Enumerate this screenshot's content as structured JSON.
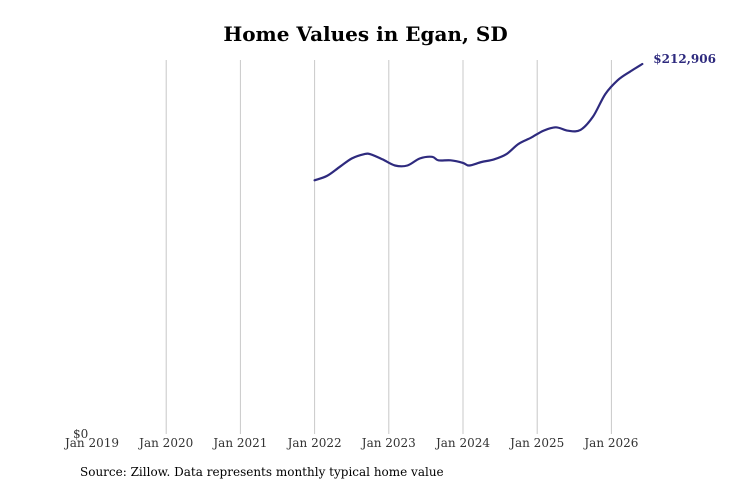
{
  "chart_data": {
    "type": "line",
    "title": "Home Values in Egan, SD",
    "xlabel": "",
    "ylabel": "",
    "y_tick_label": "$0",
    "end_label": "$212,906",
    "line_color": "#2e2a7e",
    "grid_color": "#c8c8c8",
    "grid": "vertical",
    "x_ticks": [
      "Jan 2019",
      "Jan 2020",
      "Jan 2021",
      "Jan 2022",
      "Jan 2023",
      "Jan 2024",
      "Jan 2025",
      "Jan 2026"
    ],
    "xlim": [
      "2019-01",
      "2026-06"
    ],
    "ylim": [
      0,
      212906
    ],
    "series": [
      {
        "points": [
          [
            "2022-01",
            146000
          ],
          [
            "2022-03",
            148500
          ],
          [
            "2022-05",
            153500
          ],
          [
            "2022-07",
            158500
          ],
          [
            "2022-09",
            161000
          ],
          [
            "2022-10",
            161000
          ],
          [
            "2022-12",
            158000
          ],
          [
            "2023-02",
            154500
          ],
          [
            "2023-04",
            154500
          ],
          [
            "2023-06",
            158500
          ],
          [
            "2023-08",
            159500
          ],
          [
            "2023-09",
            157500
          ],
          [
            "2023-11",
            157500
          ],
          [
            "2024-01",
            156000
          ],
          [
            "2024-02",
            154500
          ],
          [
            "2024-04",
            156500
          ],
          [
            "2024-06",
            158000
          ],
          [
            "2024-08",
            161000
          ],
          [
            "2024-10",
            167000
          ],
          [
            "2024-12",
            170500
          ],
          [
            "2025-02",
            174500
          ],
          [
            "2025-04",
            176500
          ],
          [
            "2025-06",
            174500
          ],
          [
            "2025-08",
            175000
          ],
          [
            "2025-10",
            182500
          ],
          [
            "2025-12",
            195500
          ],
          [
            "2026-02",
            203500
          ],
          [
            "2026-04",
            208500
          ],
          [
            "2026-06",
            212906
          ]
        ]
      }
    ]
  },
  "source": "Source: Zillow. Data represents monthly typical home value"
}
